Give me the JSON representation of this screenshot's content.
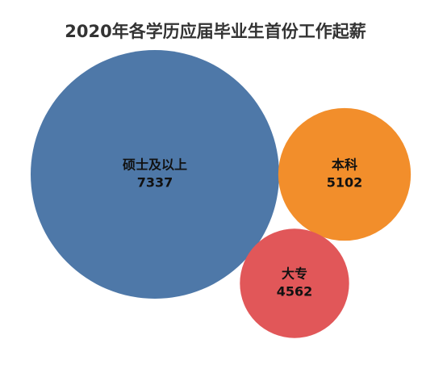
{
  "chart_data": {
    "type": "packed-bubble",
    "title": "2020年各学历应届毕业生首份工作起薪",
    "categories": [
      "硕士及以上",
      "本科",
      "大专"
    ],
    "values": [
      7337,
      5102,
      4562
    ],
    "colors": [
      "#4e78a8",
      "#f28e2b",
      "#e15759"
    ]
  }
}
